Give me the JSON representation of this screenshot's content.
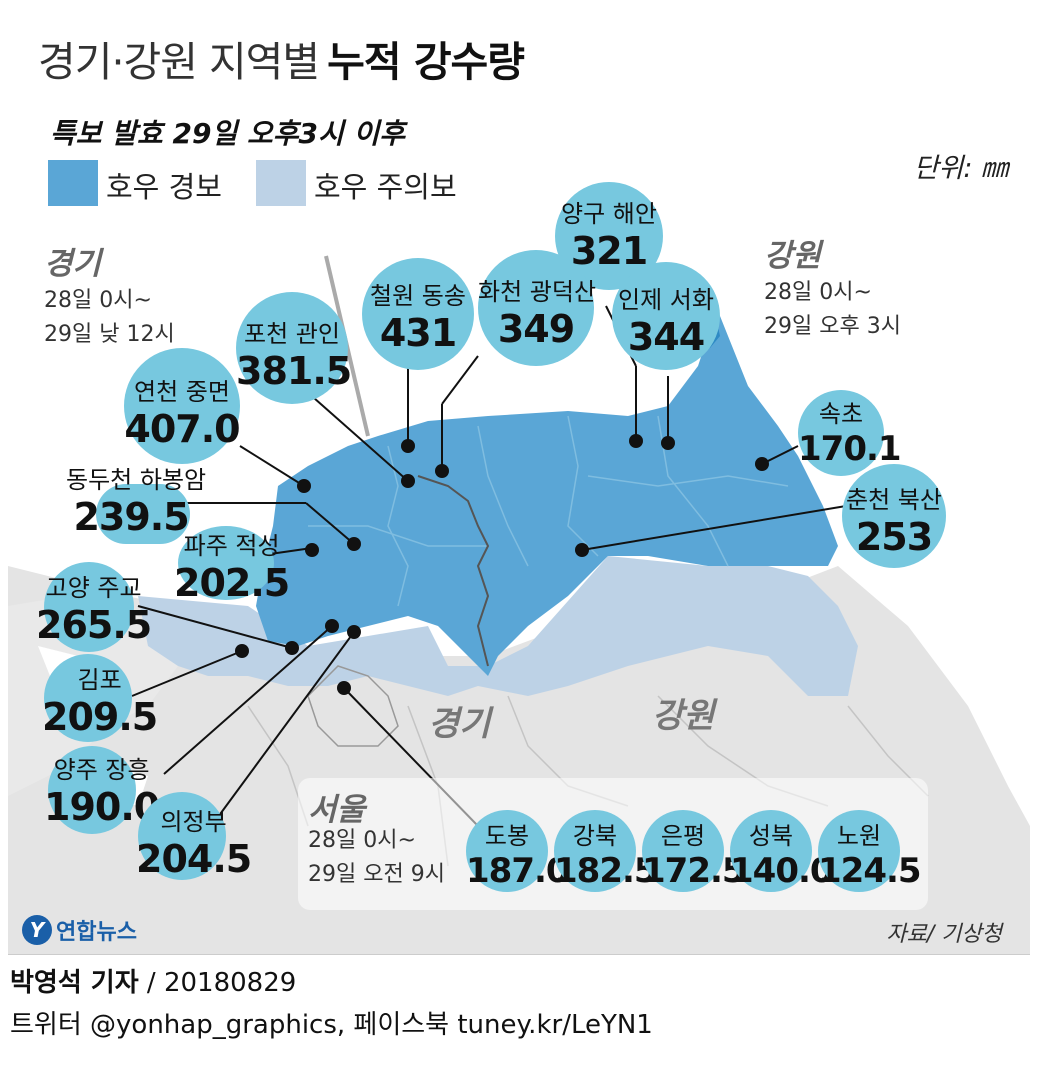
{
  "title": {
    "light": "경기·강원 지역별",
    "bold": "누적 강수량"
  },
  "subtitle": "특보 발효 29일 오후3시 이후",
  "legend": [
    {
      "label": "호우 경보",
      "color": "#5aa6d6"
    },
    {
      "label": "호우 주의보",
      "color": "#bdd2e6"
    }
  ],
  "unit": "단위: ㎜",
  "regions": {
    "gyeonggi": {
      "name": "경기",
      "period_line1": "28일 0시~",
      "period_line2": "29일 낮 12시"
    },
    "gangwon": {
      "name": "강원",
      "period_line1": "28일 0시~",
      "period_line2": "29일 오후 3시"
    },
    "seoul": {
      "name": "서울",
      "period_line1": "28일 0시~",
      "period_line2": "29일 오전 9시"
    }
  },
  "map_labels": {
    "gyeonggi": "경기",
    "gangwon": "강원"
  },
  "stations": [
    {
      "name": "양구 해안",
      "value": "321"
    },
    {
      "name": "철원 동송",
      "value": "431"
    },
    {
      "name": "화천 광덕산",
      "value": "349"
    },
    {
      "name": "인제 서화",
      "value": "344"
    },
    {
      "name": "포천 관인",
      "value": "381.5"
    },
    {
      "name": "연천 중면",
      "value": "407.0"
    },
    {
      "name": "속초",
      "value": "170.1"
    },
    {
      "name": "춘천 북산",
      "value": "253"
    },
    {
      "name": "동두천 하봉암",
      "value": "239.5"
    },
    {
      "name": "파주 적성",
      "value": "202.5"
    },
    {
      "name": "고양 주교",
      "value": "265.5"
    },
    {
      "name": "김포",
      "value": "209.5"
    },
    {
      "name": "양주 장흥",
      "value": "190.0"
    },
    {
      "name": "의정부",
      "value": "204.5"
    },
    {
      "name": "도봉",
      "value": "187.0"
    },
    {
      "name": "강북",
      "value": "182.5"
    },
    {
      "name": "은평",
      "value": "172.5"
    },
    {
      "name": "성북",
      "value": "140.0"
    },
    {
      "name": "노원",
      "value": "124.5"
    }
  ],
  "source": "자료/ 기상청",
  "logo": "연합뉴스",
  "credit": {
    "reporter": "박영석 기자",
    "date": " / 20180829",
    "sns": "트위터 @yonhap_graphics, 페이스북 tuney.kr/LeYN1"
  }
}
